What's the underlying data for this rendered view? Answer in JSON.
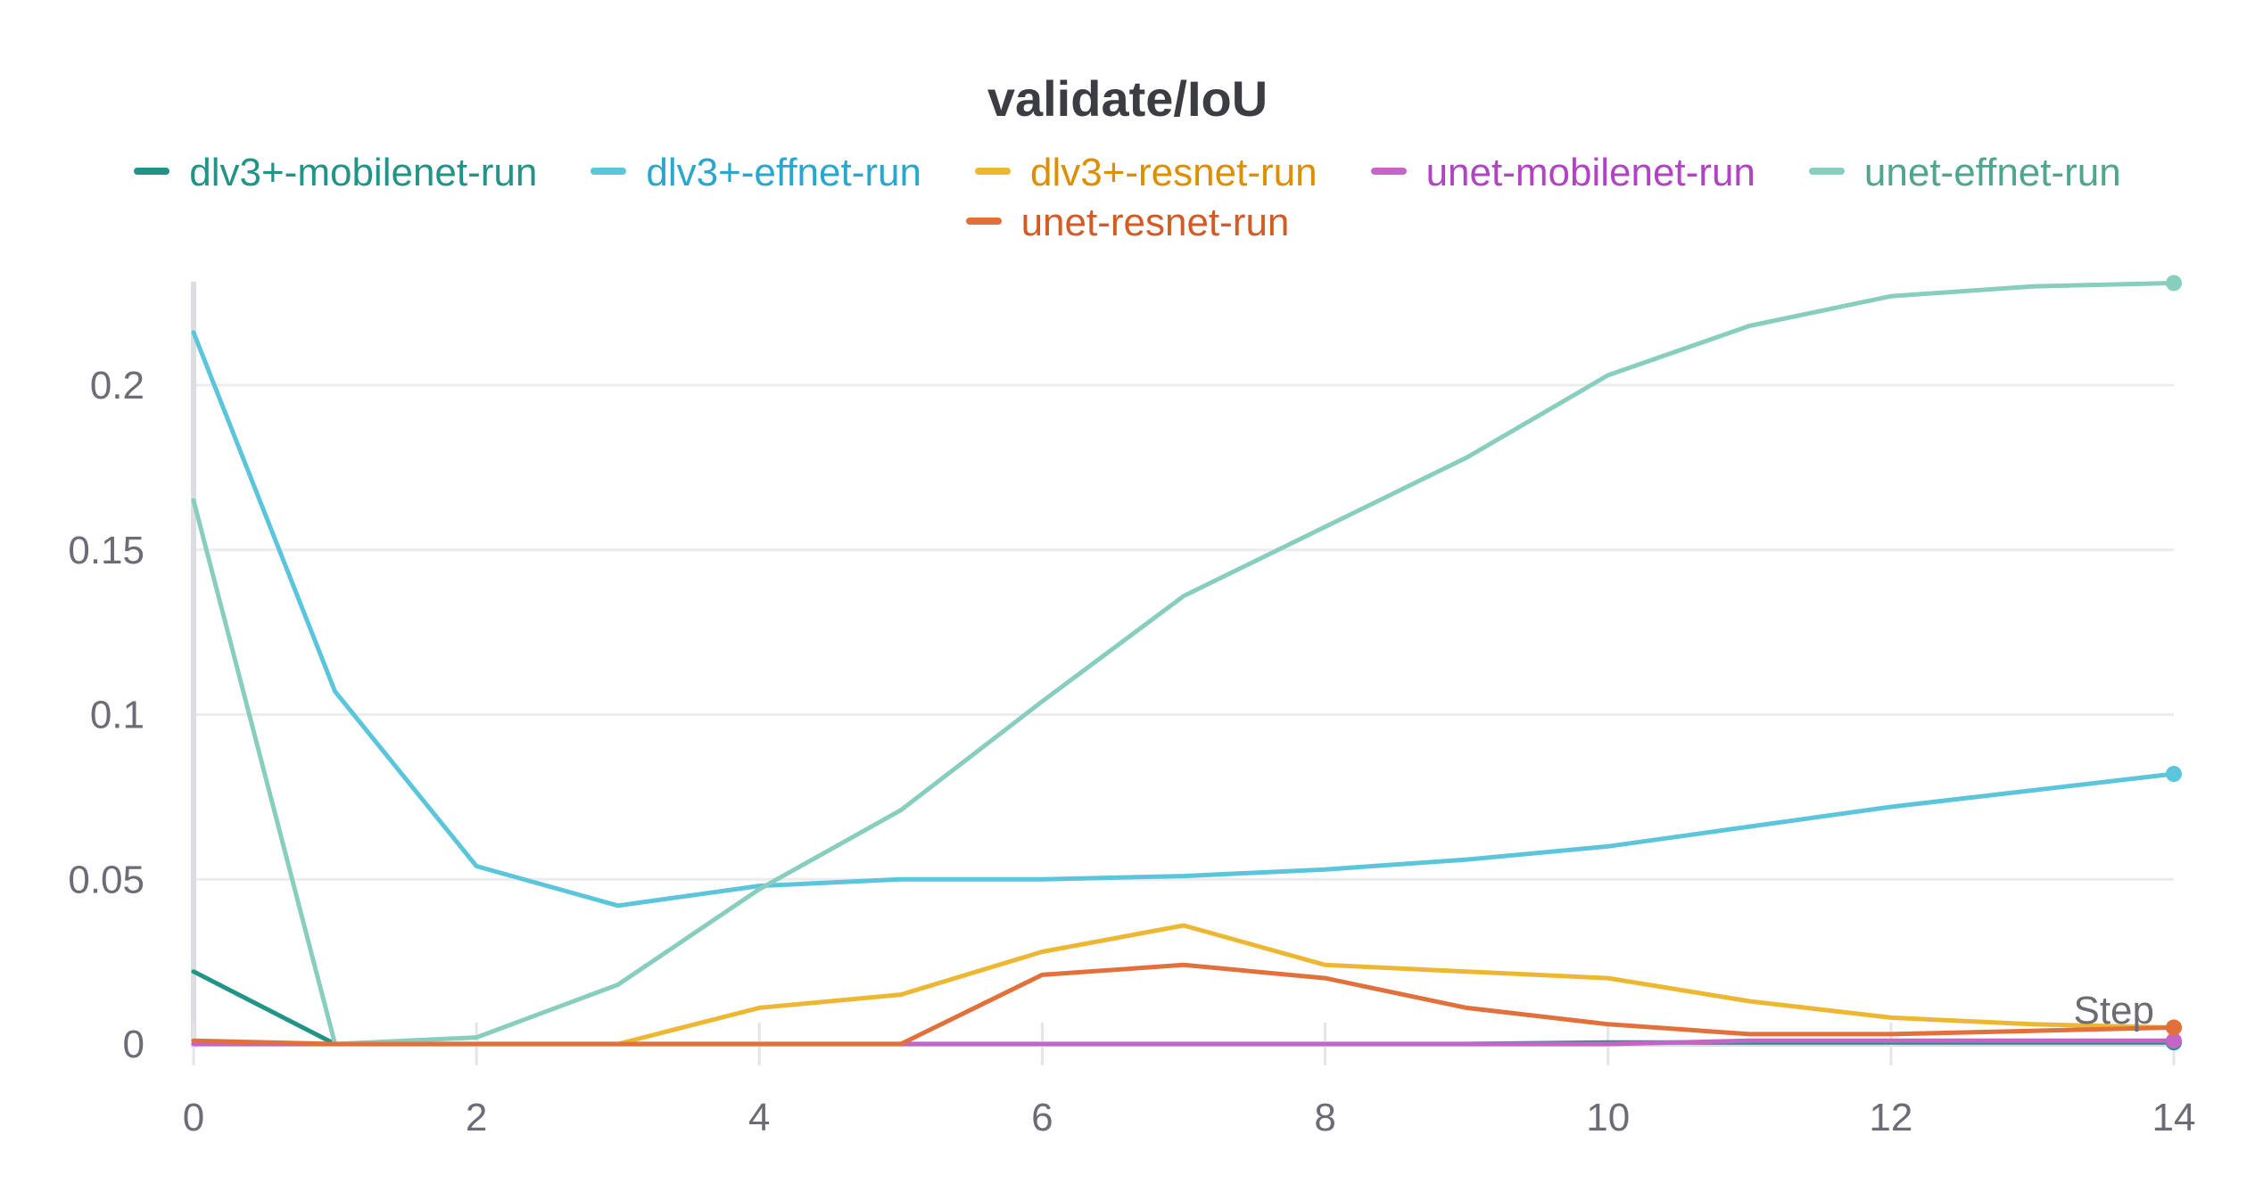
{
  "chart_data": {
    "type": "line",
    "title": "validate/IoU",
    "xlabel": "Step",
    "ylabel": "",
    "xlim": [
      0,
      14
    ],
    "ylim": [
      0,
      0.23
    ],
    "x_ticks": [
      0,
      2,
      4,
      6,
      8,
      10,
      12,
      14
    ],
    "x_tick_labels": [
      "0",
      "2",
      "4",
      "6",
      "8",
      "10",
      "12",
      "14"
    ],
    "y_ticks": [
      0,
      0.05,
      0.1,
      0.15,
      0.2
    ],
    "y_tick_labels": [
      "0",
      "0.05",
      "0.1",
      "0.15",
      "0.2"
    ],
    "grid": true,
    "legend_position": "top",
    "x": [
      0,
      1,
      2,
      3,
      4,
      5,
      6,
      7,
      8,
      9,
      10,
      11,
      12,
      13,
      14
    ],
    "series": [
      {
        "name": "dlv3+-mobilenet-run",
        "color": "#229487",
        "values": [
          0.022,
          0,
          0,
          0,
          0,
          0,
          0,
          0,
          0,
          0,
          0.0005,
          0.0005,
          0.0005,
          0.0005,
          0.0005
        ]
      },
      {
        "name": "dlv3+-effnet-run",
        "color": "#5bc5db",
        "values": [
          0.216,
          0.107,
          0.054,
          0.042,
          0.048,
          0.05,
          0.05,
          0.051,
          0.053,
          0.056,
          0.06,
          0.066,
          0.072,
          0.077,
          0.082
        ]
      },
      {
        "name": "dlv3+-resnet-run",
        "color": "#edb732",
        "values": [
          0,
          0,
          0,
          0,
          0.011,
          0.015,
          0.028,
          0.036,
          0.024,
          0.022,
          0.02,
          0.013,
          0.008,
          0.006,
          0.005
        ]
      },
      {
        "name": "unet-mobilenet-run",
        "color": "#c565c7",
        "values": [
          0,
          0,
          0,
          0,
          0,
          0,
          0,
          0,
          0,
          0,
          0,
          0.001,
          0.001,
          0.001,
          0.001
        ]
      },
      {
        "name": "unet-effnet-run",
        "color": "#87cebf",
        "values": [
          0.165,
          0,
          0.002,
          0.018,
          0.047,
          0.071,
          0.104,
          0.136,
          0.157,
          0.178,
          0.203,
          0.218,
          0.227,
          0.23,
          0.231
        ]
      },
      {
        "name": "unet-resnet-run",
        "color": "#e1703b",
        "values": [
          0.001,
          0,
          0,
          0,
          0,
          0,
          0.021,
          0.024,
          0.02,
          0.011,
          0.006,
          0.003,
          0.003,
          0.004,
          0.005
        ]
      }
    ],
    "legend_text_colors": [
      "#229487",
      "#2aa7cf",
      "#de8f00",
      "#b044c2",
      "#4fa58d",
      "#d55b25"
    ]
  }
}
